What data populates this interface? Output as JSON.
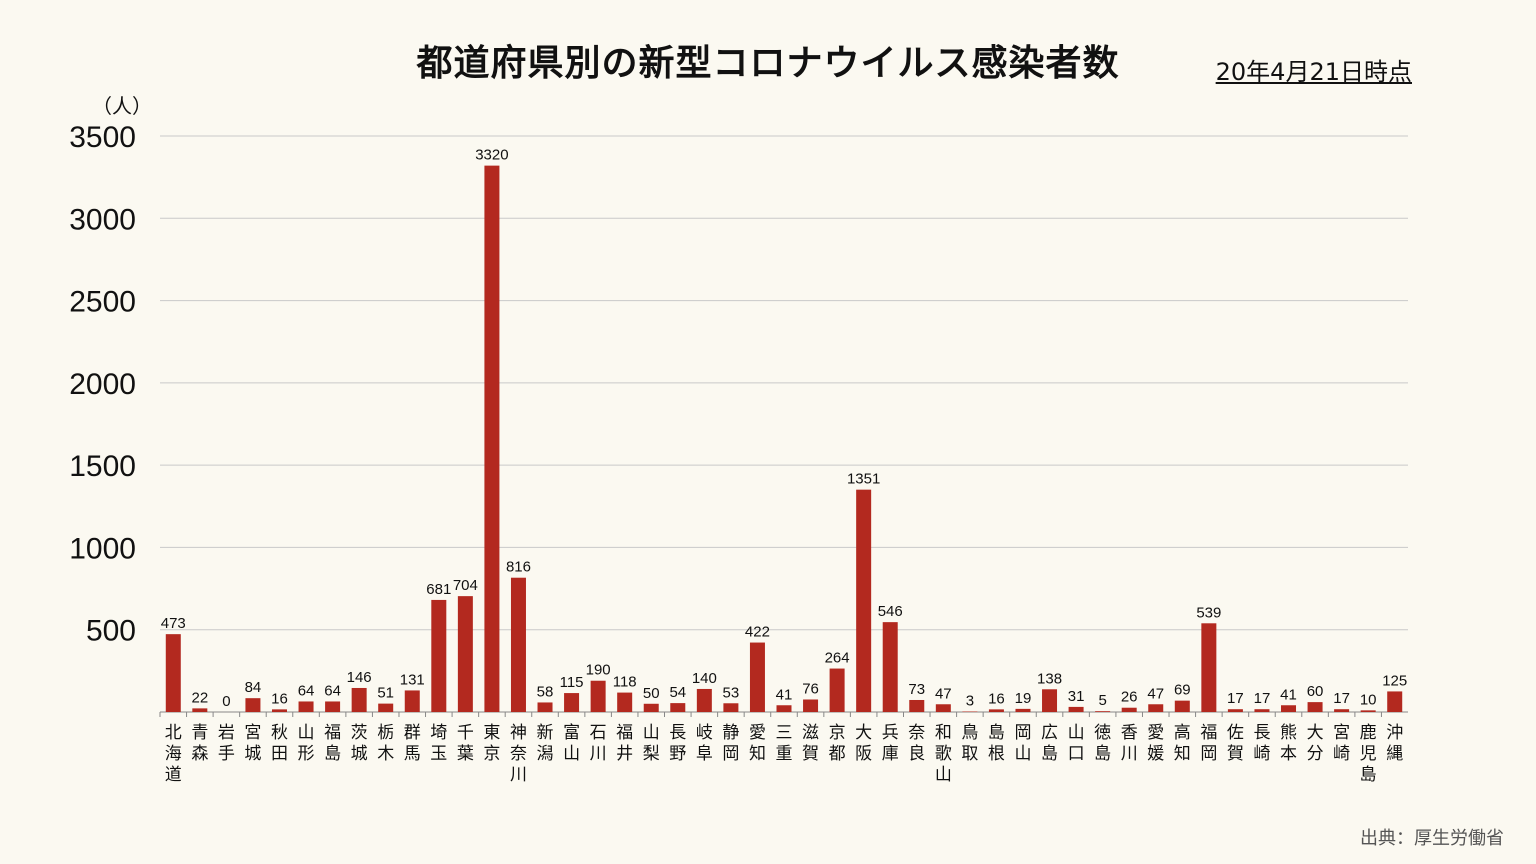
{
  "title": "都道府県別の新型コロナウイルス感染者数",
  "date": "20年4月21日時点",
  "unit": "（人）",
  "source": "出典：厚生労働省",
  "colors": {
    "bar": "#b3291f",
    "grid": "#c9c9c9",
    "background": "#fbf9f1"
  },
  "chart_data": {
    "type": "bar",
    "title": "都道府県別の新型コロナウイルス感染者数",
    "ylabel": "（人）",
    "ylim": [
      0,
      3500
    ],
    "yticks": [
      500,
      1000,
      1500,
      2000,
      2500,
      3000,
      3500
    ],
    "grid": true,
    "categories": [
      "北海道",
      "青森",
      "岩手",
      "宮城",
      "秋田",
      "山形",
      "福島",
      "茨城",
      "栃木",
      "群馬",
      "埼玉",
      "千葉",
      "東京",
      "神奈川",
      "新潟",
      "富山",
      "石川",
      "福井",
      "山梨",
      "長野",
      "岐阜",
      "静岡",
      "愛知",
      "三重",
      "滋賀",
      "京都",
      "大阪",
      "兵庫",
      "奈良",
      "和歌山",
      "鳥取",
      "島根",
      "岡山",
      "広島",
      "山口",
      "徳島",
      "香川",
      "愛媛",
      "高知",
      "福岡",
      "佐賀",
      "長崎",
      "熊本",
      "大分",
      "宮崎",
      "鹿児島",
      "沖縄"
    ],
    "values": [
      473,
      22,
      0,
      84,
      16,
      64,
      64,
      146,
      51,
      131,
      681,
      704,
      3320,
      816,
      58,
      115,
      190,
      118,
      50,
      54,
      140,
      53,
      422,
      41,
      76,
      264,
      1351,
      546,
      73,
      47,
      3,
      16,
      19,
      138,
      31,
      5,
      26,
      47,
      69,
      539,
      17,
      17,
      41,
      60,
      17,
      10,
      125
    ]
  }
}
